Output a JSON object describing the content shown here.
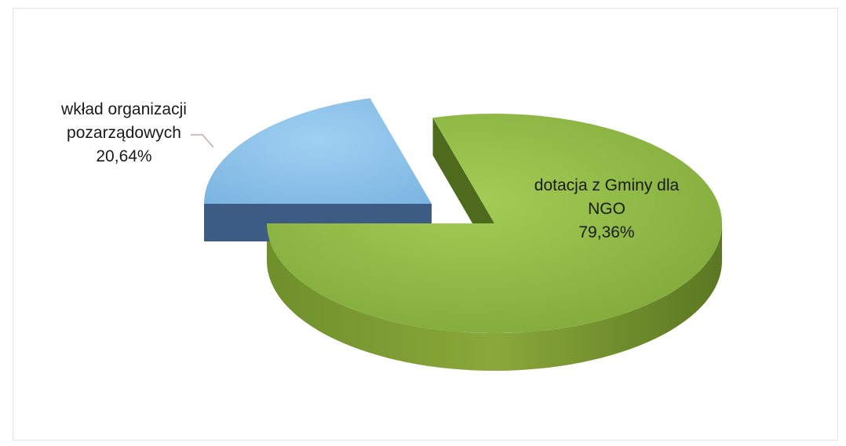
{
  "chart_data": {
    "type": "pie",
    "style": "3d-exploded",
    "slices": [
      {
        "label_lines": [
          "wkład organizacji",
          "pozarządowych"
        ],
        "value_label": "20,64%",
        "value": 20.64,
        "color": "#8ec3ea",
        "side_color": "#3e5f86"
      },
      {
        "label_lines": [
          "dotacja z Gminy dla",
          "NGO"
        ],
        "value_label": "79,36%",
        "value": 79.36,
        "color": "#8db840",
        "side_color": "#5a7a22"
      }
    ]
  }
}
